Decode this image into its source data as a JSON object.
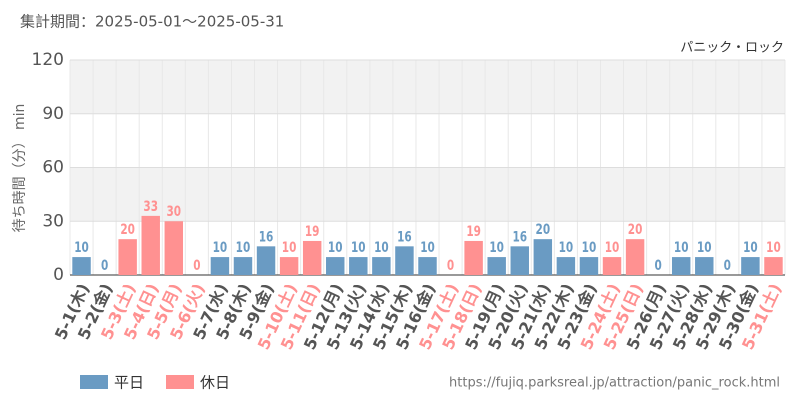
{
  "chart_data": {
    "type": "bar",
    "title": "集計期間：2025-05-01～2025-05-31",
    "subtitle": "パニック・ロック",
    "y_label": "待ち時間（分） min",
    "source": "https://fujiq.parksreal.jp/attraction/panic_rock.html",
    "categories": [
      "5-1(木)",
      "5-2(金)",
      "5-3(土)",
      "5-4(日)",
      "5-5(月)",
      "5-6(火)",
      "5-7(水)",
      "5-8(木)",
      "5-9(金)",
      "5-10(土)",
      "5-11(日)",
      "5-12(月)",
      "5-13(火)",
      "5-14(水)",
      "5-15(木)",
      "5-16(金)",
      "5-17(土)",
      "5-18(日)",
      "5-19(月)",
      "5-20(火)",
      "5-21(水)",
      "5-22(木)",
      "5-23(金)",
      "5-24(土)",
      "5-25(日)",
      "5-26(月)",
      "5-27(火)",
      "5-28(水)",
      "5-29(木)",
      "5-30(金)",
      "5-31(土)"
    ],
    "series": [
      {
        "name": "平日",
        "color": "#6a9bc3",
        "values": [
          10,
          0,
          null,
          null,
          null,
          null,
          10,
          10,
          16,
          null,
          null,
          10,
          10,
          10,
          16,
          10,
          null,
          null,
          10,
          16,
          20,
          10,
          10,
          null,
          null,
          0,
          10,
          10,
          0,
          10,
          null
        ]
      },
      {
        "name": "休日",
        "color": "#ff9191",
        "values": [
          null,
          null,
          20,
          33,
          30,
          0,
          null,
          null,
          null,
          10,
          19,
          null,
          null,
          null,
          null,
          null,
          0,
          19,
          null,
          null,
          null,
          null,
          null,
          10,
          20,
          null,
          null,
          null,
          null,
          null,
          10
        ]
      }
    ],
    "ylim": [
      0,
      120
    ],
    "yticks": [
      0,
      30,
      60,
      90,
      120
    ],
    "grid": true,
    "legend": "bottom-left"
  }
}
